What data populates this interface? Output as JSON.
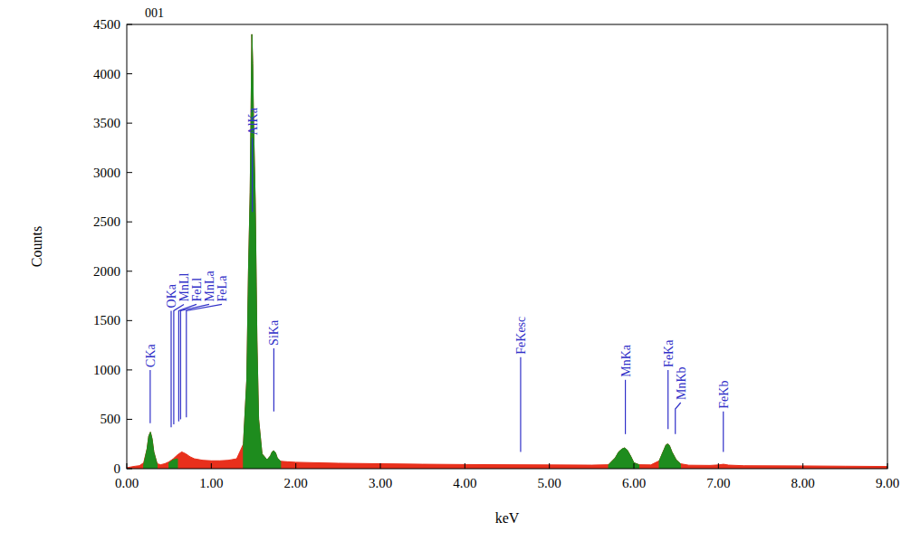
{
  "chart_data": {
    "type": "area",
    "title": "001",
    "x_label": "keV",
    "y_label": "Counts",
    "xlim": [
      0,
      9
    ],
    "ylim": [
      0,
      4500
    ],
    "xticks": [
      {
        "value": 0,
        "label": "0.00"
      },
      {
        "value": 1,
        "label": "1.00"
      },
      {
        "value": 2,
        "label": "2.00"
      },
      {
        "value": 3,
        "label": "3.00"
      },
      {
        "value": 4,
        "label": "4.00"
      },
      {
        "value": 5,
        "label": "5.00"
      },
      {
        "value": 6,
        "label": "6.00"
      },
      {
        "value": 7,
        "label": "7.00"
      },
      {
        "value": 8,
        "label": "8.00"
      },
      {
        "value": 9,
        "label": "9.00"
      }
    ],
    "yticks": [
      0,
      500,
      1000,
      1500,
      2000,
      2500,
      3000,
      3500,
      4000,
      4500
    ],
    "grid": false,
    "x": [
      0.0,
      0.1,
      0.15,
      0.2,
      0.24,
      0.26,
      0.28,
      0.3,
      0.32,
      0.36,
      0.4,
      0.45,
      0.5,
      0.55,
      0.6,
      0.65,
      0.7,
      0.75,
      0.8,
      0.9,
      1.0,
      1.1,
      1.2,
      1.3,
      1.38,
      1.42,
      1.44,
      1.46,
      1.48,
      1.49,
      1.5,
      1.52,
      1.54,
      1.56,
      1.6,
      1.66,
      1.7,
      1.72,
      1.74,
      1.76,
      1.78,
      1.82,
      1.9,
      2.0,
      2.5,
      3.0,
      3.5,
      4.0,
      4.5,
      5.0,
      5.5,
      5.7,
      5.78,
      5.82,
      5.86,
      5.89,
      5.92,
      5.96,
      6.0,
      6.06,
      6.2,
      6.3,
      6.35,
      6.38,
      6.4,
      6.42,
      6.45,
      6.5,
      6.55,
      6.65,
      6.9,
      7.0,
      7.06,
      7.12,
      7.3,
      8.0,
      8.5,
      9.0
    ],
    "series": [
      {
        "color": "#e8301c",
        "values": [
          10,
          25,
          30,
          60,
          200,
          330,
          370,
          300,
          170,
          50,
          40,
          50,
          70,
          100,
          140,
          170,
          150,
          120,
          100,
          85,
          80,
          80,
          85,
          100,
          250,
          900,
          2000,
          2800,
          4400,
          4100,
          3500,
          2700,
          1300,
          500,
          150,
          90,
          130,
          170,
          180,
          160,
          110,
          75,
          70,
          65,
          55,
          50,
          45,
          42,
          40,
          38,
          36,
          40,
          110,
          170,
          200,
          210,
          190,
          130,
          60,
          40,
          38,
          80,
          180,
          240,
          250,
          235,
          170,
          90,
          50,
          35,
          33,
          38,
          45,
          36,
          30,
          28,
          25,
          22
        ]
      },
      {
        "color": "#1e8c1e",
        "values": [
          null,
          null,
          null,
          40,
          200,
          330,
          370,
          300,
          170,
          40,
          null,
          null,
          60,
          90,
          100,
          null,
          null,
          null,
          null,
          null,
          null,
          null,
          null,
          null,
          250,
          900,
          2000,
          2800,
          4400,
          4100,
          3500,
          2700,
          1300,
          500,
          150,
          90,
          130,
          170,
          180,
          160,
          110,
          75,
          null,
          null,
          null,
          null,
          null,
          null,
          null,
          null,
          null,
          40,
          110,
          170,
          200,
          210,
          190,
          130,
          60,
          40,
          null,
          80,
          180,
          240,
          250,
          235,
          170,
          90,
          50,
          null,
          null,
          null,
          null,
          null,
          null,
          null,
          null,
          null
        ]
      }
    ],
    "annotations": [
      {
        "text": "CKa",
        "x": 0.277,
        "y0": 460,
        "y1": 1000
      },
      {
        "text": "OKa",
        "x": 0.525,
        "y0": 420,
        "y1": 1600
      },
      {
        "text": "MnLl",
        "x": 0.556,
        "y0": 450,
        "y1": 1600
      },
      {
        "text": "FeLl",
        "x": 0.615,
        "y0": 480,
        "y1": 1600
      },
      {
        "text": "MnLa",
        "x": 0.637,
        "y0": 500,
        "y1": 1600
      },
      {
        "text": "FeLa",
        "x": 0.705,
        "y0": 520,
        "y1": 1600
      },
      {
        "text": "AlKa",
        "x": 1.486,
        "y0": 2600,
        "y1": 3350
      },
      {
        "text": "SiKa",
        "x": 1.74,
        "y0": 580,
        "y1": 1220
      },
      {
        "text": "FeKesc",
        "x": 4.66,
        "y0": 170,
        "y1": 1130
      },
      {
        "text": "MnKa",
        "x": 5.899,
        "y0": 350,
        "y1": 900
      },
      {
        "text": "FeKa",
        "x": 6.404,
        "y0": 400,
        "y1": 1000
      },
      {
        "text": "MnKb",
        "x": 6.49,
        "y0": 350,
        "y1": 605
      },
      {
        "text": "FeKb",
        "x": 7.058,
        "y0": 170,
        "y1": 580
      }
    ]
  }
}
